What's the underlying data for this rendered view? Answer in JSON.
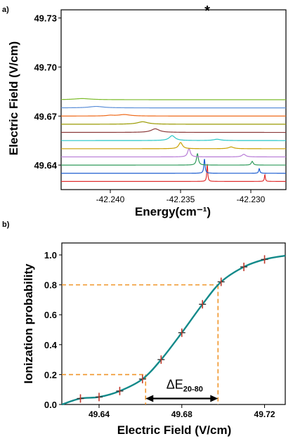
{
  "figure": {
    "panel_a_label": "a)",
    "panel_b_label": "b)"
  },
  "chart_data": [
    {
      "type": "line",
      "panel": "a)",
      "xlabel": "Energy(cm⁻¹)",
      "ylabel": "Electric Field (V/cm)",
      "xlim": [
        -42.2435,
        -42.2275
      ],
      "x_ticks": [
        "-42.240",
        "-42.235",
        "-42.230"
      ],
      "x_tick_values": [
        -42.24,
        -42.235,
        -42.23
      ],
      "y_tick_labels": [
        "49.73",
        "49.70",
        "49.67",
        "49.64"
      ],
      "y_tick_values": [
        49.73,
        49.7,
        49.67,
        49.64
      ],
      "ylim": [
        49.625,
        49.735
      ],
      "grid": false,
      "annotations": [
        {
          "text": "*",
          "x": -42.233,
          "y": 49.733
        }
      ],
      "series": [
        {
          "color": "#e03030",
          "baseline": 49.63,
          "peaks": [
            {
              "x": -42.2331,
              "amp": 0.0106,
              "width": 4e-05
            },
            {
              "x": -42.229,
              "amp": 0.0042,
              "width": 4e-05
            }
          ]
        },
        {
          "color": "#1f5fd0",
          "baseline": 49.635,
          "peaks": [
            {
              "x": -42.2333,
              "amp": 0.0088,
              "width": 5e-05
            },
            {
              "x": -42.2294,
              "amp": 0.0028,
              "width": 5e-05
            }
          ]
        },
        {
          "color": "#2e9a5a",
          "baseline": 49.64,
          "peaks": [
            {
              "x": -42.2338,
              "amp": 0.007,
              "width": 8e-05
            },
            {
              "x": -42.2299,
              "amp": 0.0023,
              "width": 8e-05
            }
          ]
        },
        {
          "color": "#b77ad6",
          "baseline": 49.645,
          "peaks": [
            {
              "x": -42.2344,
              "amp": 0.0052,
              "width": 0.00011
            },
            {
              "x": -42.2305,
              "amp": 0.0016,
              "width": 0.00016
            }
          ]
        },
        {
          "color": "#c9a000",
          "baseline": 49.65,
          "peaks": [
            {
              "x": -42.235,
              "amp": 0.0038,
              "width": 0.00016
            },
            {
              "x": -42.2314,
              "amp": 0.0011,
              "width": 0.00022
            }
          ]
        },
        {
          "color": "#26c6c6",
          "baseline": 49.655,
          "peaks": [
            {
              "x": -42.2356,
              "amp": 0.003,
              "width": 0.00025
            },
            {
              "x": -42.2324,
              "amp": 0.0008,
              "width": 0.0003
            }
          ]
        },
        {
          "color": "#8b3a3a",
          "baseline": 49.66,
          "peaks": [
            {
              "x": -42.2368,
              "amp": 0.0022,
              "width": 0.00035
            }
          ]
        },
        {
          "color": "#9a9a00",
          "baseline": 49.665,
          "peaks": [
            {
              "x": -42.2377,
              "amp": 0.0015,
              "width": 0.00045
            }
          ]
        },
        {
          "color": "#ef6a1a",
          "baseline": 49.67,
          "peaks": [
            {
              "x": -42.239,
              "amp": 0.0009,
              "width": 0.0005
            },
            {
              "x": -42.24,
              "amp": 0.0004,
              "width": 0.0003
            }
          ]
        },
        {
          "color": "#5b8fd8",
          "baseline": 49.675,
          "peaks": [
            {
              "x": -42.241,
              "amp": 0.0009,
              "width": 0.0006
            }
          ]
        },
        {
          "color": "#7cbb2a",
          "baseline": 49.68,
          "peaks": [
            {
              "x": -42.242,
              "amp": 0.0007,
              "width": 0.0007
            }
          ]
        }
      ]
    },
    {
      "type": "line",
      "panel": "b)",
      "xlabel": "Electric Field (V/cm)",
      "ylabel": "Ionization probability",
      "xlim": [
        49.622,
        49.73
      ],
      "ylim": [
        0.0,
        1.08
      ],
      "x_ticks": [
        "49.64",
        "49.68",
        "49.72"
      ],
      "x_tick_values": [
        49.64,
        49.68,
        49.72
      ],
      "y_ticks": [
        "0.0",
        "0.2",
        "0.4",
        "0.6",
        "0.8",
        "1.0"
      ],
      "y_tick_values": [
        0.0,
        0.2,
        0.4,
        0.6,
        0.8,
        1.0
      ],
      "grid": false,
      "curve_color": "#138a8a",
      "marker_color": "#c0392b",
      "guide_color": "#f0952a",
      "points": {
        "x": [
          49.631,
          49.64,
          49.65,
          49.661,
          49.67,
          49.68,
          49.69,
          49.699,
          49.71,
          49.72
        ],
        "y": [
          0.04,
          0.05,
          0.09,
          0.17,
          0.3,
          0.48,
          0.67,
          0.82,
          0.92,
          0.97
        ]
      },
      "guides": [
        {
          "level": 0.2,
          "x": 49.6625
        },
        {
          "level": 0.8,
          "x": 49.6975
        }
      ],
      "annotation": {
        "text": "ΔE",
        "subscript": "20-80",
        "from": 49.6625,
        "to": 49.6975
      }
    }
  ]
}
